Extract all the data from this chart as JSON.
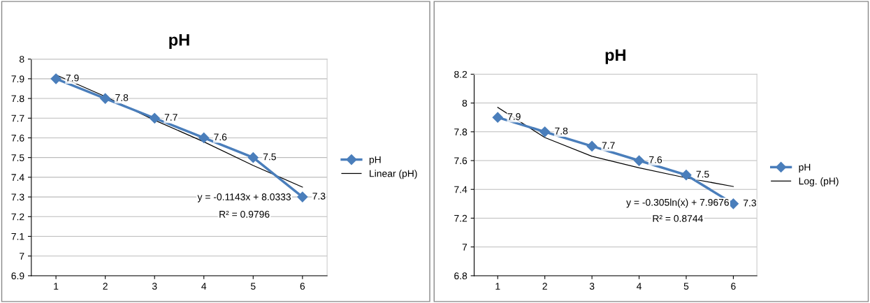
{
  "chart_data": [
    {
      "type": "line",
      "title": "pH",
      "categories": [
        "1",
        "2",
        "3",
        "4",
        "5",
        "6"
      ],
      "ylim": [
        6.9,
        8
      ],
      "yticks": [
        6.9,
        7,
        7.1,
        7.2,
        7.3,
        7.4,
        7.5,
        7.6,
        7.7,
        7.8,
        7.9,
        8
      ],
      "grid": "y",
      "legend": "right",
      "series": [
        {
          "name": "pH",
          "color": "#4a7ebb",
          "values": [
            7.9,
            7.8,
            7.7,
            7.6,
            7.5,
            7.3
          ],
          "marker": "diamond",
          "value_labels": [
            "7.9",
            "7.8",
            "7.7",
            "7.6",
            "7.5",
            "7.3"
          ]
        },
        {
          "name": "Linear (pH)",
          "color": "#000000",
          "values": [
            7.92,
            7.81,
            7.69,
            7.58,
            7.46,
            7.35
          ],
          "marker": "none"
        }
      ],
      "annotations": [
        "y = -0.1143x + 8.0333",
        "R² = 0.9796"
      ]
    },
    {
      "type": "line",
      "title": "pH",
      "categories": [
        "1",
        "2",
        "3",
        "4",
        "5",
        "6"
      ],
      "ylim": [
        6.8,
        8.2
      ],
      "yticks": [
        6.8,
        7,
        7.2,
        7.4,
        7.6,
        7.8,
        8,
        8.2
      ],
      "grid": "y",
      "legend": "right",
      "series": [
        {
          "name": "pH",
          "color": "#4a7ebb",
          "values": [
            7.9,
            7.8,
            7.7,
            7.6,
            7.5,
            7.3
          ],
          "marker": "diamond",
          "value_labels": [
            "7.9",
            "7.8",
            "7.7",
            "7.6",
            "7.5",
            "7.3"
          ]
        },
        {
          "name": "Log. (pH)",
          "color": "#000000",
          "values": [
            7.97,
            7.76,
            7.63,
            7.55,
            7.48,
            7.42
          ],
          "marker": "none"
        }
      ],
      "annotations": [
        "y = -0.305ln(x) + 7.9676",
        "R² = 0.8744"
      ]
    }
  ]
}
